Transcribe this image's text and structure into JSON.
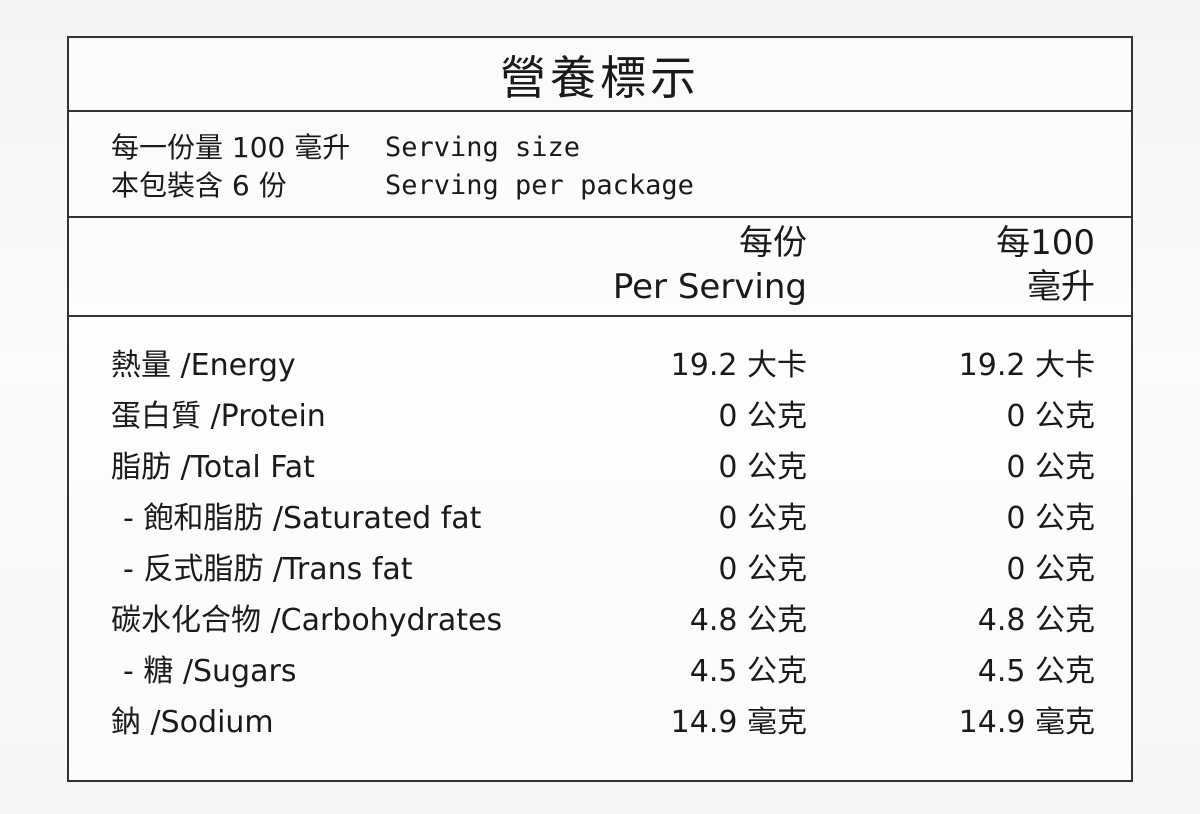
{
  "title": "營養標示",
  "serving": {
    "size_zh": "每一份量 100 毫升",
    "size_en": "Serving size",
    "per_package_zh": "本包裝含 6 份",
    "per_package_en": "Serving per package"
  },
  "columns": {
    "per_serving_zh": "每份",
    "per_serving_en": "Per Serving",
    "per_100_line1": "每100",
    "per_100_line2": "毫升"
  },
  "nutrients": [
    {
      "name": "熱量 /Energy",
      "indent": false,
      "per_serving": "19.2 大卡",
      "per_100": "19.2 大卡"
    },
    {
      "name": "蛋白質 /Protein",
      "indent": false,
      "per_serving": "0 公克",
      "per_100": "0 公克"
    },
    {
      "name": "脂肪 /Total Fat",
      "indent": false,
      "per_serving": "0 公克",
      "per_100": "0 公克"
    },
    {
      "name": "- 飽和脂肪 /Saturated fat",
      "indent": true,
      "per_serving": "0 公克",
      "per_100": "0 公克"
    },
    {
      "name": "- 反式脂肪 /Trans fat",
      "indent": true,
      "per_serving": "0 公克",
      "per_100": "0 公克"
    },
    {
      "name": "碳水化合物 /Carbohydrates",
      "indent": false,
      "per_serving": "4.8 公克",
      "per_100": "4.8 公克"
    },
    {
      "name": "- 糖 /Sugars",
      "indent": true,
      "per_serving": "4.5 公克",
      "per_100": "4.5 公克"
    },
    {
      "name": "鈉 /Sodium",
      "indent": false,
      "per_serving": "14.9 毫克",
      "per_100": "14.9 毫克"
    }
  ]
}
